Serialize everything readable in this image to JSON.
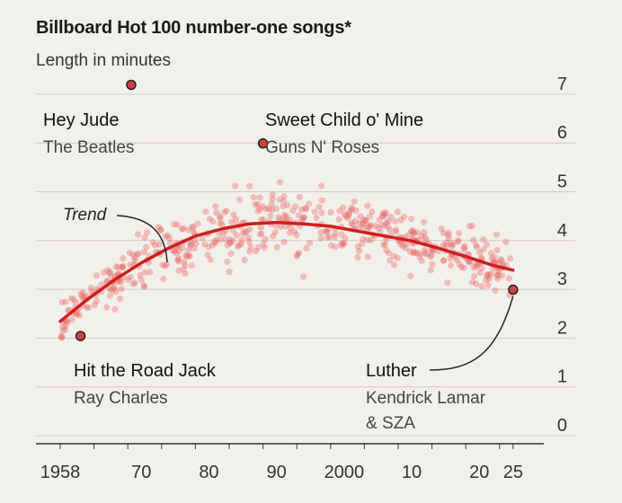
{
  "title": "Billboard Hot 100 number-one songs*",
  "subtitle": "Length in minutes",
  "colors": {
    "background": "#f2f0eb",
    "dots": "#e8696a",
    "trend": "#cc1f1f",
    "highlight": "#d44040",
    "grid": "#cfcbc2",
    "axis": "#333333"
  },
  "chart_data": {
    "type": "scatter",
    "title": "Billboard Hot 100 number-one songs*",
    "ylabel": "Length in minutes",
    "xlim": [
      1956,
      2025.5
    ],
    "ylim": [
      0,
      7
    ],
    "x_ticks": [
      {
        "value": 1958,
        "label": "1958"
      },
      {
        "value": 1970,
        "label": "70"
      },
      {
        "value": 1980,
        "label": "80"
      },
      {
        "value": 1990,
        "label": "90"
      },
      {
        "value": 2000,
        "label": "2000"
      },
      {
        "value": 2010,
        "label": "10"
      },
      {
        "value": 2020,
        "label": "20"
      },
      {
        "value": 2025,
        "label": "25"
      }
    ],
    "y_ticks": [
      0,
      1,
      2,
      3,
      4,
      5,
      6,
      7
    ],
    "grid": true,
    "trend": {
      "label": "Trend",
      "points": [
        [
          1958,
          2.25
        ],
        [
          1962,
          2.7
        ],
        [
          1966,
          3.1
        ],
        [
          1970,
          3.45
        ],
        [
          1974,
          3.75
        ],
        [
          1978,
          4.0
        ],
        [
          1982,
          4.15
        ],
        [
          1986,
          4.25
        ],
        [
          1990,
          4.28
        ],
        [
          1994,
          4.25
        ],
        [
          1998,
          4.2
        ],
        [
          2002,
          4.1
        ],
        [
          2006,
          4.0
        ],
        [
          2010,
          3.9
        ],
        [
          2014,
          3.75
        ],
        [
          2018,
          3.58
        ],
        [
          2022,
          3.4
        ],
        [
          2025,
          3.3
        ]
      ]
    },
    "highlights": [
      {
        "title": "Hey Jude",
        "artist": "The Beatles",
        "x": 1968.5,
        "y": 7.1
      },
      {
        "title": "Sweet Child o' Mine",
        "artist": "Guns N' Roses",
        "x": 1988,
        "y": 5.9
      },
      {
        "title": "Hit the Road Jack",
        "artist": "Ray Charles",
        "x": 1961,
        "y": 1.95
      },
      {
        "title": "Luther",
        "artist": "Kendrick Lamar",
        "artist2": "& SZA",
        "x": 2025,
        "y": 2.9
      }
    ]
  }
}
